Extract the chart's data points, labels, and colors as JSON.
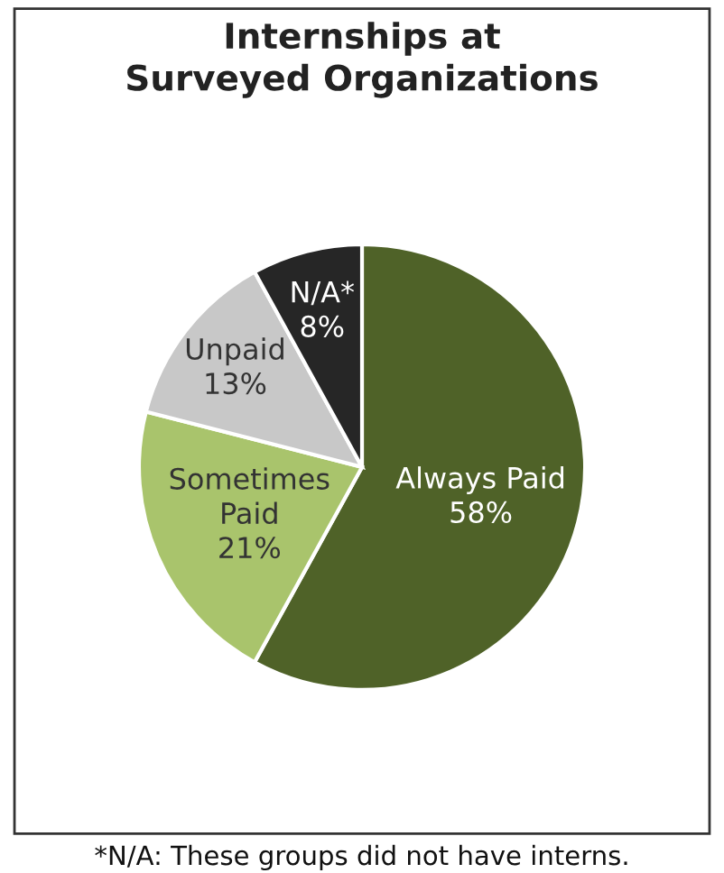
{
  "chart_data": {
    "type": "pie",
    "title": "Internships at\nSurveyed Organizations",
    "categories": [
      "Always Paid",
      "Sometimes\nPaid",
      "Unpaid",
      "N/A*"
    ],
    "values": [
      58,
      21,
      13,
      8
    ],
    "colors": [
      "#4f6228",
      "#a9c46c",
      "#c8c8c8",
      "#262626"
    ],
    "value_labels": [
      "58%",
      "21%",
      "13%",
      "8%"
    ],
    "annotations": [
      "*N/A: These groups did not have interns."
    ],
    "legend": false
  }
}
